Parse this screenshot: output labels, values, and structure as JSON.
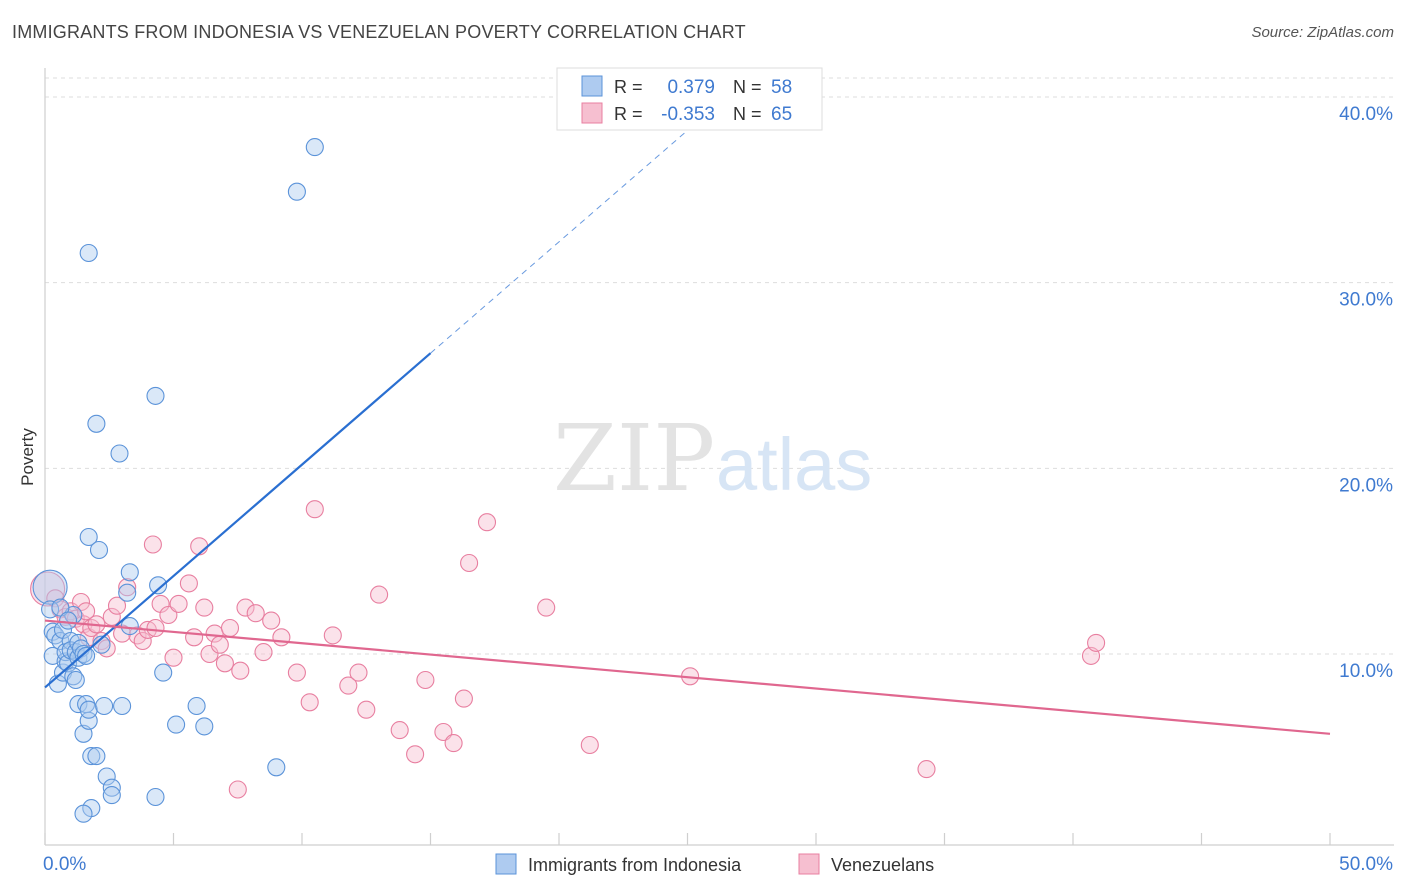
{
  "header": {
    "title": "IMMIGRANTS FROM INDONESIA VS VENEZUELAN POVERTY CORRELATION CHART",
    "source": "Source: ZipAtlas.com"
  },
  "watermark": {
    "zip": "ZIP",
    "atlas": "atlas"
  },
  "colors": {
    "blue": "#5b93d9",
    "blue_fill": "#aecbf0",
    "blue_line": "#2a6fd1",
    "pink": "#e87fa0",
    "pink_fill": "#f6bfd0",
    "pink_line": "#e0678f",
    "axis_text": "#3f7ad0",
    "grid": "#dddddd"
  },
  "legend_top": {
    "rows": [
      {
        "r_label": "R =",
        "r_value": "0.379",
        "n_label": "N =",
        "n_value": "58"
      },
      {
        "r_label": "R =",
        "r_value": "-0.353",
        "n_label": "N =",
        "n_value": "65"
      }
    ]
  },
  "legend_bottom": {
    "items": [
      "Immigrants from Indonesia",
      "Venezuelans"
    ]
  },
  "chart_data": {
    "type": "scatter",
    "title": "IMMIGRANTS FROM INDONESIA VS VENEZUELAN POVERTY CORRELATION CHART",
    "xlabel": "",
    "ylabel": "Poverty",
    "xlim": [
      0,
      50
    ],
    "ylim": [
      0,
      42
    ],
    "x_tick_labels": [
      "0.0%",
      "50.0%"
    ],
    "y_ticks": [
      10,
      20,
      30,
      40
    ],
    "y_tick_labels": [
      "10.0%",
      "20.0%",
      "30.0%",
      "40.0%"
    ],
    "grid": true,
    "series": [
      {
        "name": "Immigrants from Indonesia",
        "r": 0.379,
        "n": 58,
        "trend": {
          "x0": 0,
          "y0": 8.2,
          "x1": 15,
          "y1": 26.2,
          "dash_to_x": 26,
          "dash_to_y": 39.4
        },
        "points": [
          [
            0.2,
            13.6
          ],
          [
            0.2,
            12.4
          ],
          [
            0.3,
            11.2
          ],
          [
            0.3,
            9.9
          ],
          [
            0.4,
            11.0
          ],
          [
            0.5,
            8.4
          ],
          [
            0.6,
            10.7
          ],
          [
            0.7,
            9.0
          ],
          [
            0.7,
            11.3
          ],
          [
            0.8,
            9.6
          ],
          [
            0.8,
            10.1
          ],
          [
            0.9,
            9.5
          ],
          [
            1.0,
            10.7
          ],
          [
            1.1,
            8.8
          ],
          [
            1.0,
            10.2
          ],
          [
            1.1,
            12.1
          ],
          [
            1.2,
            10.1
          ],
          [
            1.2,
            8.6
          ],
          [
            1.3,
            10.6
          ],
          [
            1.3,
            9.8
          ],
          [
            1.4,
            10.3
          ],
          [
            1.5,
            10.0
          ],
          [
            1.6,
            9.9
          ],
          [
            1.3,
            7.3
          ],
          [
            1.5,
            5.7
          ],
          [
            1.6,
            7.3
          ],
          [
            1.7,
            6.4
          ],
          [
            1.7,
            7.0
          ],
          [
            1.8,
            4.5
          ],
          [
            2.0,
            4.5
          ],
          [
            2.3,
            7.2
          ],
          [
            2.4,
            3.4
          ],
          [
            2.6,
            2.8
          ],
          [
            2.6,
            2.4
          ],
          [
            1.8,
            1.7
          ],
          [
            1.5,
            1.4
          ],
          [
            1.7,
            31.6
          ],
          [
            2.0,
            22.4
          ],
          [
            2.9,
            20.8
          ],
          [
            1.7,
            16.3
          ],
          [
            2.1,
            15.6
          ],
          [
            4.3,
            23.9
          ],
          [
            3.3,
            14.4
          ],
          [
            4.4,
            13.7
          ],
          [
            3.2,
            13.3
          ],
          [
            3.3,
            11.5
          ],
          [
            4.6,
            9.0
          ],
          [
            5.1,
            6.2
          ],
          [
            5.9,
            7.2
          ],
          [
            6.2,
            6.1
          ],
          [
            4.3,
            2.3
          ],
          [
            9.0,
            3.9
          ],
          [
            9.8,
            34.9
          ],
          [
            10.5,
            37.3
          ],
          [
            3.0,
            7.2
          ],
          [
            0.6,
            12.5
          ],
          [
            2.2,
            10.5
          ],
          [
            0.9,
            11.8
          ]
        ]
      },
      {
        "name": "Venezuelans",
        "r": -0.353,
        "n": 65,
        "trend": {
          "x0": 0,
          "y0": 11.8,
          "x1": 50,
          "y1": 5.7
        },
        "points": [
          [
            0.1,
            13.5
          ],
          [
            0.4,
            13.0
          ],
          [
            0.6,
            12.4
          ],
          [
            0.8,
            12.0
          ],
          [
            1.0,
            12.3
          ],
          [
            1.2,
            11.9
          ],
          [
            1.4,
            12.8
          ],
          [
            1.5,
            11.6
          ],
          [
            1.6,
            12.3
          ],
          [
            1.7,
            10.9
          ],
          [
            1.8,
            11.4
          ],
          [
            2.0,
            11.6
          ],
          [
            2.2,
            10.7
          ],
          [
            2.4,
            10.3
          ],
          [
            2.6,
            12.0
          ],
          [
            2.8,
            12.6
          ],
          [
            3.0,
            11.1
          ],
          [
            3.2,
            13.6
          ],
          [
            3.6,
            11.0
          ],
          [
            3.8,
            10.7
          ],
          [
            4.0,
            11.3
          ],
          [
            4.3,
            11.4
          ],
          [
            4.5,
            12.7
          ],
          [
            4.8,
            12.1
          ],
          [
            5.0,
            9.8
          ],
          [
            5.2,
            12.7
          ],
          [
            5.6,
            13.8
          ],
          [
            5.8,
            10.9
          ],
          [
            6.0,
            15.8
          ],
          [
            6.2,
            12.5
          ],
          [
            6.4,
            10.0
          ],
          [
            6.6,
            11.1
          ],
          [
            6.8,
            10.5
          ],
          [
            7.0,
            9.5
          ],
          [
            7.2,
            11.4
          ],
          [
            7.6,
            9.1
          ],
          [
            7.8,
            12.5
          ],
          [
            8.2,
            12.2
          ],
          [
            8.5,
            10.1
          ],
          [
            8.8,
            11.8
          ],
          [
            9.2,
            10.9
          ],
          [
            9.8,
            9.0
          ],
          [
            10.3,
            7.4
          ],
          [
            11.2,
            11.0
          ],
          [
            11.8,
            8.3
          ],
          [
            12.2,
            9.0
          ],
          [
            12.5,
            7.0
          ],
          [
            13.0,
            13.2
          ],
          [
            13.8,
            5.9
          ],
          [
            14.4,
            4.6
          ],
          [
            14.8,
            8.6
          ],
          [
            15.5,
            5.8
          ],
          [
            15.9,
            5.2
          ],
          [
            16.3,
            7.6
          ],
          [
            16.5,
            14.9
          ],
          [
            17.2,
            17.1
          ],
          [
            10.5,
            17.8
          ],
          [
            4.2,
            15.9
          ],
          [
            19.5,
            12.5
          ],
          [
            21.2,
            5.1
          ],
          [
            25.1,
            8.8
          ],
          [
            34.3,
            3.8
          ],
          [
            40.7,
            9.9
          ],
          [
            40.9,
            10.6
          ],
          [
            7.5,
            2.7
          ]
        ]
      }
    ]
  }
}
